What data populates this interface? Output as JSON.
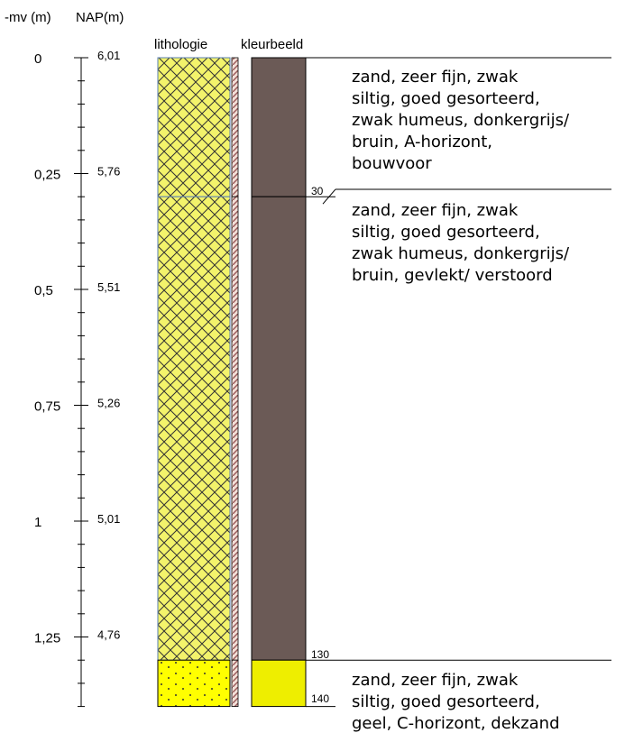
{
  "headers": {
    "mv": "-mv (m)",
    "nap": "NAP(m)",
    "lithology": "lithologie",
    "color_image": "kleurbeeld"
  },
  "scale": {
    "depth_ticks": [
      {
        "mv": "0",
        "nap": "6,01"
      },
      {
        "mv": "0,25",
        "nap": "5,76"
      },
      {
        "mv": "0,5",
        "nap": "5,51"
      },
      {
        "mv": "0,75",
        "nap": "5,26"
      },
      {
        "mv": "1",
        "nap": "5,01"
      },
      {
        "mv": "1,25",
        "nap": "4,76"
      }
    ]
  },
  "layers": [
    {
      "top_cm": 0,
      "bottom_cm": 30,
      "lithology": "sand-humus-crosshatch",
      "lith_color": "#f3f36b",
      "color_swatch": "#6b5a56"
    },
    {
      "top_cm": 30,
      "bottom_cm": 130,
      "lithology": "sand-humus-crosshatch",
      "lith_color": "#f3f36b",
      "color_swatch": "#6b5a56"
    },
    {
      "top_cm": 130,
      "bottom_cm": 140,
      "lithology": "sand-dotted",
      "lith_color": "#ffff00",
      "color_swatch": "#eeee00"
    }
  ],
  "boundary_labels": [
    "30",
    "130",
    "140"
  ],
  "descriptions": [
    {
      "lines": [
        "zand, zeer fijn, zwak",
        "siltig, goed gesorteerd,",
        "zwak humeus, donkergrijs/",
        "bruin, A-horizont,",
        "bouwvoor"
      ]
    },
    {
      "lines": [
        "zand, zeer fijn, zwak",
        "siltig, goed gesorteerd,",
        "zwak humeus, donkergrijs/",
        "bruin, gevlekt/ verstoord"
      ]
    },
    {
      "lines": [
        "zand, zeer fijn, zwak",
        "siltig, goed gesorteerd,",
        "geel, C-horizont, dekzand"
      ]
    }
  ]
}
